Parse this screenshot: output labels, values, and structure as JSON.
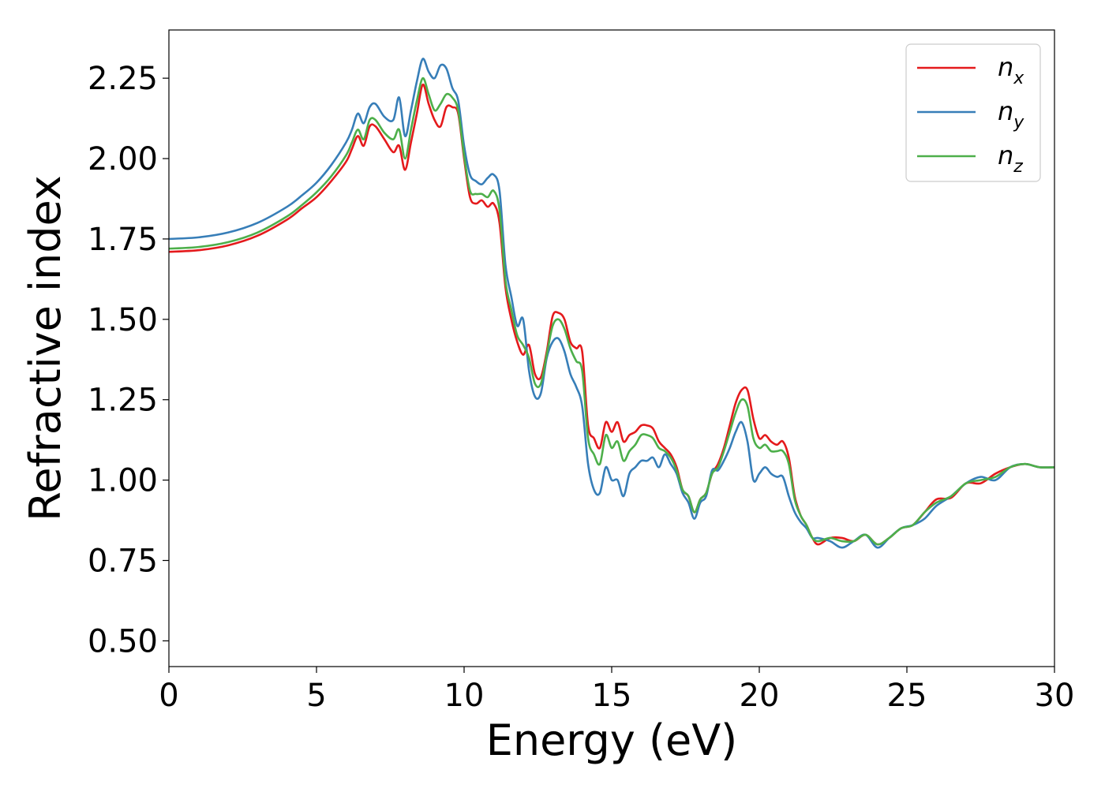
{
  "chart_data": {
    "type": "line",
    "title": "",
    "xlabel": "Energy (eV)",
    "ylabel": "Refractive index",
    "xlim": [
      0,
      30
    ],
    "ylim": [
      0.42,
      2.4
    ],
    "xticks": [
      0,
      5,
      10,
      15,
      20,
      25,
      30
    ],
    "xtick_labels": [
      "0",
      "5",
      "10",
      "15",
      "20",
      "25",
      "30"
    ],
    "yticks": [
      0.5,
      0.75,
      1.0,
      1.25,
      1.5,
      1.75,
      2.0,
      2.25
    ],
    "ytick_labels": [
      "0.50",
      "0.75",
      "1.00",
      "1.25",
      "1.50",
      "1.75",
      "2.00",
      "2.25"
    ],
    "grid": false,
    "legend_position": "top-right",
    "series": [
      {
        "name": "n_x",
        "label_main": "n",
        "label_sub": "x",
        "color": "#e41a1c",
        "x": [
          0,
          1,
          2,
          3,
          4,
          4.5,
          5,
          5.5,
          6,
          6.2,
          6.4,
          6.6,
          6.8,
          7.0,
          7.3,
          7.6,
          7.8,
          8.0,
          8.2,
          8.4,
          8.6,
          8.8,
          9.0,
          9.2,
          9.4,
          9.6,
          9.8,
          10.0,
          10.2,
          10.4,
          10.6,
          10.8,
          11.0,
          11.2,
          11.4,
          11.6,
          11.8,
          12.0,
          12.2,
          12.4,
          12.6,
          12.8,
          13.0,
          13.2,
          13.4,
          13.6,
          13.8,
          14.0,
          14.2,
          14.4,
          14.6,
          14.8,
          15.0,
          15.2,
          15.4,
          15.6,
          15.8,
          16.0,
          16.2,
          16.4,
          16.6,
          16.8,
          17.0,
          17.2,
          17.4,
          17.6,
          17.8,
          18.0,
          18.2,
          18.4,
          18.6,
          18.8,
          19.0,
          19.2,
          19.4,
          19.6,
          19.8,
          20.0,
          20.2,
          20.4,
          20.6,
          20.8,
          21.0,
          21.2,
          21.4,
          21.6,
          21.8,
          22.0,
          22.4,
          22.8,
          23.2,
          23.6,
          24.0,
          24.4,
          24.8,
          25.2,
          25.6,
          26.0,
          26.5,
          27.0,
          27.5,
          28.0,
          28.5,
          29.0,
          29.5,
          30.0
        ],
        "y": [
          1.71,
          1.715,
          1.73,
          1.76,
          1.81,
          1.845,
          1.88,
          1.93,
          1.99,
          2.03,
          2.07,
          2.04,
          2.1,
          2.1,
          2.06,
          2.02,
          2.04,
          1.965,
          2.05,
          2.14,
          2.23,
          2.17,
          2.12,
          2.1,
          2.16,
          2.16,
          2.14,
          2.0,
          1.88,
          1.86,
          1.87,
          1.85,
          1.86,
          1.8,
          1.6,
          1.5,
          1.43,
          1.39,
          1.42,
          1.33,
          1.32,
          1.4,
          1.51,
          1.52,
          1.5,
          1.43,
          1.41,
          1.4,
          1.17,
          1.13,
          1.1,
          1.18,
          1.15,
          1.18,
          1.12,
          1.14,
          1.15,
          1.17,
          1.17,
          1.16,
          1.12,
          1.1,
          1.08,
          1.04,
          0.97,
          0.95,
          0.9,
          0.94,
          0.96,
          1.02,
          1.05,
          1.1,
          1.17,
          1.24,
          1.28,
          1.28,
          1.19,
          1.13,
          1.14,
          1.12,
          1.11,
          1.12,
          1.07,
          0.95,
          0.89,
          0.86,
          0.82,
          0.8,
          0.82,
          0.82,
          0.81,
          0.83,
          0.8,
          0.82,
          0.85,
          0.86,
          0.9,
          0.94,
          0.945,
          0.99,
          0.99,
          1.02,
          1.04,
          1.05,
          1.04,
          1.04
        ]
      },
      {
        "name": "n_y",
        "label_main": "n",
        "label_sub": "y",
        "color": "#377eb8",
        "x": [
          0,
          1,
          2,
          3,
          4,
          4.5,
          5,
          5.5,
          6,
          6.2,
          6.4,
          6.6,
          6.8,
          7.0,
          7.3,
          7.6,
          7.8,
          8.0,
          8.2,
          8.4,
          8.6,
          8.8,
          9.0,
          9.2,
          9.4,
          9.6,
          9.8,
          10.0,
          10.2,
          10.4,
          10.6,
          10.8,
          11.0,
          11.2,
          11.4,
          11.6,
          11.8,
          12.0,
          12.2,
          12.4,
          12.6,
          12.8,
          13.0,
          13.2,
          13.4,
          13.6,
          13.8,
          14.0,
          14.2,
          14.4,
          14.6,
          14.8,
          15.0,
          15.2,
          15.4,
          15.6,
          15.8,
          16.0,
          16.2,
          16.4,
          16.6,
          16.8,
          17.0,
          17.2,
          17.4,
          17.6,
          17.8,
          18.0,
          18.2,
          18.4,
          18.6,
          18.8,
          19.0,
          19.2,
          19.4,
          19.6,
          19.8,
          20.0,
          20.2,
          20.4,
          20.6,
          20.8,
          21.0,
          21.2,
          21.4,
          21.6,
          21.8,
          22.0,
          22.4,
          22.8,
          23.2,
          23.6,
          24.0,
          24.4,
          24.8,
          25.2,
          25.6,
          26.0,
          26.5,
          27.0,
          27.5,
          28.0,
          28.5,
          29.0,
          29.5,
          30.0
        ],
        "y": [
          1.75,
          1.755,
          1.77,
          1.8,
          1.85,
          1.885,
          1.925,
          1.98,
          2.05,
          2.09,
          2.14,
          2.11,
          2.16,
          2.17,
          2.13,
          2.12,
          2.19,
          2.07,
          2.15,
          2.24,
          2.31,
          2.27,
          2.25,
          2.29,
          2.28,
          2.22,
          2.18,
          2.04,
          1.95,
          1.93,
          1.92,
          1.94,
          1.95,
          1.9,
          1.67,
          1.57,
          1.48,
          1.5,
          1.34,
          1.26,
          1.27,
          1.38,
          1.43,
          1.44,
          1.4,
          1.33,
          1.29,
          1.23,
          1.05,
          0.97,
          0.96,
          1.04,
          1.0,
          1.0,
          0.95,
          1.02,
          1.04,
          1.06,
          1.06,
          1.07,
          1.04,
          1.08,
          1.05,
          1.02,
          0.96,
          0.93,
          0.88,
          0.93,
          0.95,
          1.03,
          1.03,
          1.06,
          1.1,
          1.15,
          1.18,
          1.12,
          1.0,
          1.02,
          1.04,
          1.02,
          1.01,
          1.01,
          0.95,
          0.9,
          0.87,
          0.85,
          0.82,
          0.82,
          0.81,
          0.79,
          0.81,
          0.83,
          0.79,
          0.82,
          0.85,
          0.86,
          0.88,
          0.92,
          0.95,
          0.99,
          1.01,
          1.0,
          1.04,
          1.05,
          1.04,
          1.04
        ]
      },
      {
        "name": "n_z",
        "label_main": "n",
        "label_sub": "z",
        "color": "#4daf4a",
        "x": [
          0,
          1,
          2,
          3,
          4,
          4.5,
          5,
          5.5,
          6,
          6.2,
          6.4,
          6.6,
          6.8,
          7.0,
          7.3,
          7.6,
          7.8,
          8.0,
          8.2,
          8.4,
          8.6,
          8.8,
          9.0,
          9.2,
          9.4,
          9.6,
          9.8,
          10.0,
          10.2,
          10.4,
          10.6,
          10.8,
          11.0,
          11.2,
          11.4,
          11.6,
          11.8,
          12.0,
          12.2,
          12.4,
          12.6,
          12.8,
          13.0,
          13.2,
          13.4,
          13.6,
          13.8,
          14.0,
          14.2,
          14.4,
          14.6,
          14.8,
          15.0,
          15.2,
          15.4,
          15.6,
          15.8,
          16.0,
          16.2,
          16.4,
          16.6,
          16.8,
          17.0,
          17.2,
          17.4,
          17.6,
          17.8,
          18.0,
          18.2,
          18.4,
          18.6,
          18.8,
          19.0,
          19.2,
          19.4,
          19.6,
          19.8,
          20.0,
          20.2,
          20.4,
          20.6,
          20.8,
          21.0,
          21.2,
          21.4,
          21.6,
          21.8,
          22.0,
          22.4,
          22.8,
          23.2,
          23.6,
          24.0,
          24.4,
          24.8,
          25.2,
          25.6,
          26.0,
          26.5,
          27.0,
          27.5,
          28.0,
          28.5,
          29.0,
          29.5,
          30.0
        ],
        "y": [
          1.72,
          1.725,
          1.74,
          1.77,
          1.82,
          1.855,
          1.895,
          1.945,
          2.01,
          2.05,
          2.09,
          2.06,
          2.12,
          2.12,
          2.08,
          2.06,
          2.09,
          2.0,
          2.09,
          2.18,
          2.25,
          2.2,
          2.15,
          2.17,
          2.2,
          2.19,
          2.15,
          2.01,
          1.9,
          1.89,
          1.89,
          1.88,
          1.9,
          1.84,
          1.62,
          1.53,
          1.45,
          1.42,
          1.38,
          1.3,
          1.3,
          1.39,
          1.48,
          1.5,
          1.47,
          1.41,
          1.37,
          1.34,
          1.13,
          1.08,
          1.05,
          1.14,
          1.1,
          1.12,
          1.06,
          1.09,
          1.11,
          1.14,
          1.14,
          1.13,
          1.1,
          1.09,
          1.07,
          1.03,
          0.97,
          0.95,
          0.9,
          0.94,
          0.96,
          1.02,
          1.04,
          1.09,
          1.15,
          1.21,
          1.25,
          1.23,
          1.13,
          1.1,
          1.11,
          1.09,
          1.09,
          1.09,
          1.05,
          0.94,
          0.89,
          0.86,
          0.82,
          0.81,
          0.82,
          0.81,
          0.81,
          0.83,
          0.8,
          0.82,
          0.85,
          0.86,
          0.9,
          0.93,
          0.95,
          0.99,
          1.0,
          1.01,
          1.04,
          1.05,
          1.04,
          1.04
        ]
      }
    ]
  }
}
